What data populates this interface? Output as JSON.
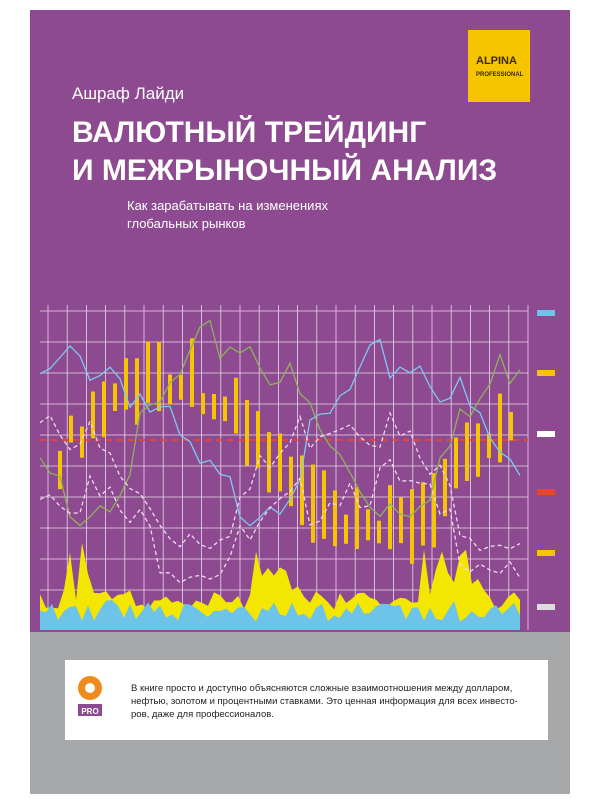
{
  "badge": {
    "name": "ALPINA",
    "line": "PROFESSIONAL"
  },
  "author": "Ашраф Лайди",
  "title": [
    "ВАЛЮТНЫЙ ТРЕЙДИНГ",
    "И МЕЖРЫНОЧНЫЙ АНАЛИЗ"
  ],
  "subtitle": [
    "Как зарабатывать на изменениях",
    "глобальных рынков"
  ],
  "description": {
    "logo": "PRO",
    "lines": [
      "В книге просто и доступно объясняются сложные взаимоотношения между долларом,",
      "нефтью, золотом и процентными ставками. Это ценная информация для всех инвесто-",
      "ров, даже для профессионалов."
    ]
  }
}
